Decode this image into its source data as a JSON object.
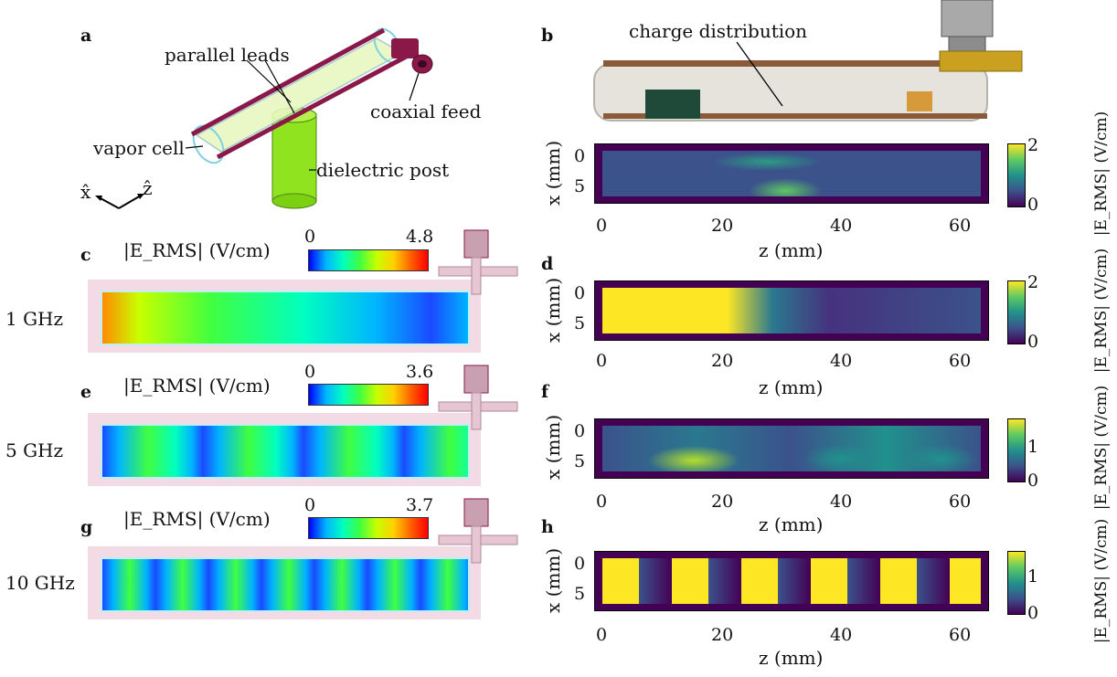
{
  "panels": {
    "a": {
      "label": "a",
      "annotations": [
        "parallel leads",
        "coaxial feed",
        "vapor cell",
        "dielectric post"
      ],
      "axes": [
        "x̂",
        "ẑ"
      ]
    },
    "b": {
      "label": "b",
      "annotation": "charge distribution"
    },
    "c": {
      "label": "c",
      "freq": "1 GHz",
      "quantity": "|E_RMS| (V/cm)",
      "cbar_min": "0",
      "cbar_max": "4.8"
    },
    "d": {
      "label": "d"
    },
    "e": {
      "label": "e",
      "freq": "5 GHz",
      "quantity": "|E_RMS| (V/cm)",
      "cbar_min": "0",
      "cbar_max": "3.6"
    },
    "f": {
      "label": "f"
    },
    "g": {
      "label": "g",
      "freq": "10 GHz",
      "quantity": "|E_RMS| (V/cm)",
      "cbar_min": "0",
      "cbar_max": "3.7"
    },
    "h": {
      "label": "h"
    }
  },
  "heatmaps": {
    "xlabel": "z (mm)",
    "ylabel": "x (mm)",
    "xticks": [
      "0",
      "20",
      "40",
      "60"
    ],
    "yticks": [
      "0",
      "5"
    ],
    "cbar_label": "|E_RMS| (V/cm)",
    "b_cbar_ticks": [
      "2",
      "0"
    ],
    "d_cbar_ticks": [
      "2",
      "0"
    ],
    "f_cbar_ticks": [
      "1",
      "0"
    ],
    "h_cbar_ticks": [
      "1",
      "0"
    ]
  },
  "chart_data": [
    {
      "type": "heatmap",
      "panel": "b",
      "xlabel": "z (mm)",
      "ylabel": "x (mm)",
      "xlim": [
        0,
        65
      ],
      "ylim": [
        9,
        -1
      ],
      "cbar_range": [
        0,
        2
      ]
    },
    {
      "type": "heatmap",
      "panel": "d",
      "xlabel": "z (mm)",
      "ylabel": "x (mm)",
      "xlim": [
        0,
        65
      ],
      "ylim": [
        9,
        -1
      ],
      "cbar_range": [
        0,
        2
      ]
    },
    {
      "type": "heatmap",
      "panel": "f",
      "xlabel": "z (mm)",
      "ylabel": "x (mm)",
      "xlim": [
        0,
        65
      ],
      "ylim": [
        9,
        -1
      ],
      "cbar_range": [
        0,
        1.5
      ]
    },
    {
      "type": "heatmap",
      "panel": "h",
      "xlabel": "z (mm)",
      "ylabel": "x (mm)",
      "xlim": [
        0,
        65
      ],
      "ylim": [
        9,
        -1
      ],
      "cbar_range": [
        0,
        1.5
      ]
    }
  ]
}
